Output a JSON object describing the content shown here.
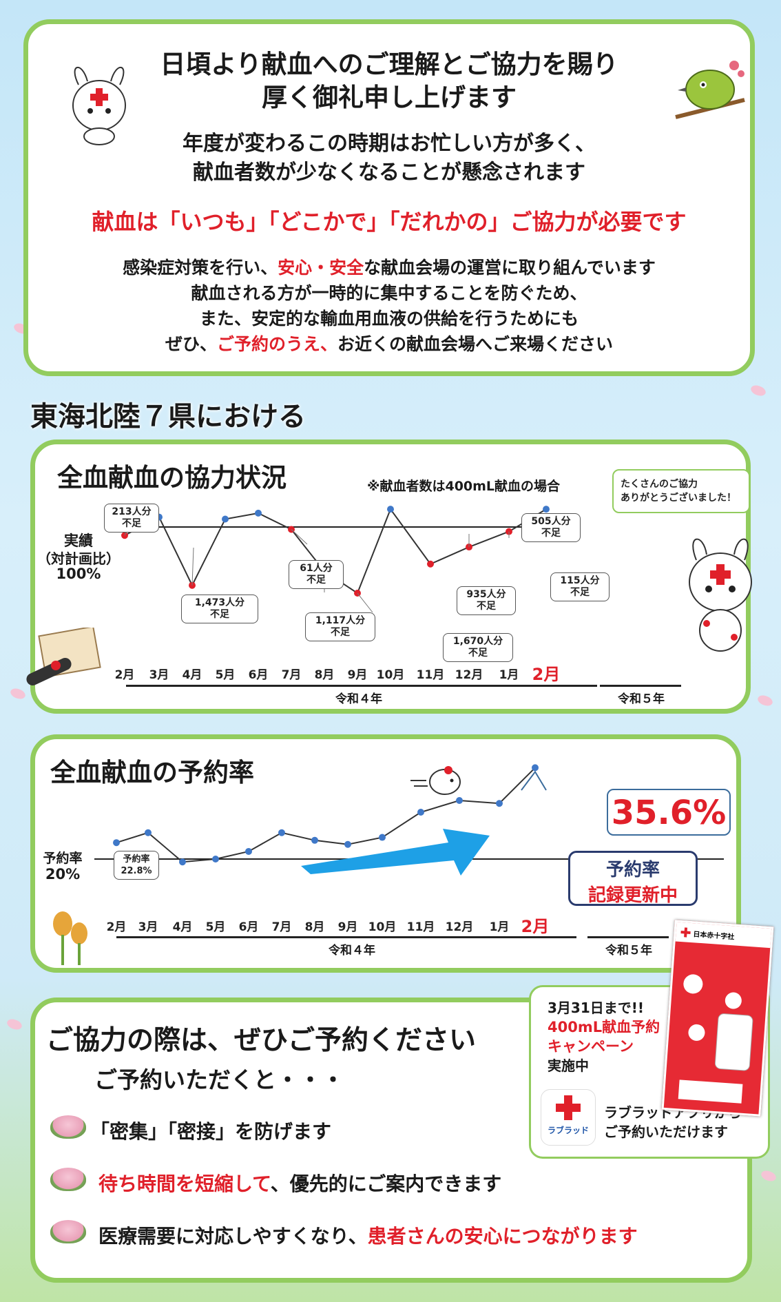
{
  "intro": {
    "title_line1": "日頃より献血へのご理解とご協力を賜り",
    "title_line2": "厚く御礼申し上げます",
    "sub_line1": "年度が変わるこの時期はお忙しい方が多く、",
    "sub_line2": "献血者数が少なくなることが懸念されます",
    "red_line": "献血は「いつも」「どこかで」「だれかの」ご協力が必要です",
    "p1_a": "感染症対策を行い、",
    "p1_red": "安心・安全",
    "p1_b": "な献血会場の運営に取り組んでいます",
    "p2": "献血される方が一時的に集中することを防ぐため、",
    "p3": "また、安定的な輸血用血液の供給を行うためにも",
    "p4_a": "ぜひ、",
    "p4_red": "ご予約のうえ、",
    "p4_b": "お近くの献血会場へご来場ください"
  },
  "region_heading": "東海北陸７県における",
  "whole_blood": {
    "title": "全血献血の協力状況",
    "note": "※献血者数は400mL献血の場合",
    "thanks_line1": "たくさんのご協力",
    "thanks_line2": "ありがとうございました！",
    "baseline_label_1": "実績",
    "baseline_label_2": "（対計画比）",
    "baseline_label_3": "100%",
    "bubbles": {
      "feb": "213人分\n不足",
      "apr": "1,473人分\n不足",
      "jul": "61人分\n不足",
      "aug": "1,117人分\n不足",
      "sep": "1,670人分\n不足",
      "nov": "935人分\n不足",
      "dec": "505人分\n不足",
      "jan": "115人分\n不足"
    },
    "era1": "令和４年",
    "era2": "令和５年"
  },
  "reservation": {
    "title": "全血献血の予約率",
    "baseline_label_1": "予約率",
    "baseline_label_2": "20%",
    "start_bubble": "予約率\n22.8%",
    "big_value": "35.6%",
    "record_1": "予約率",
    "record_2": "記録更新中",
    "era1": "令和４年",
    "era2": "令和５年"
  },
  "months": [
    "2月",
    "3月",
    "4月",
    "5月",
    "6月",
    "7月",
    "8月",
    "9月",
    "10月",
    "11月",
    "12月",
    "1月",
    "2月"
  ],
  "chart_data": [
    {
      "type": "line",
      "title": "全血献血の協力状況",
      "ylabel": "実績（対計画比）",
      "baseline": "100%",
      "x": [
        "2月",
        "3月",
        "4月",
        "5月",
        "6月",
        "7月",
        "8月",
        "9月",
        "10月",
        "11月",
        "12月",
        "1月",
        "2月"
      ],
      "series": [
        {
          "values": [
            -213,
            250,
            -1473,
            200,
            350,
            -61,
            -1117,
            -1670,
            450,
            -935,
            -505,
            -115,
            450
          ]
        }
      ],
      "deficit_labels": {
        "2月": "213人分不足",
        "4月": "1,473人分不足",
        "7月": "61人分不足",
        "8月": "1,117人分不足",
        "9月": "1,670人分不足",
        "11月": "935人分不足",
        "12月": "505人分不足",
        "1月": "115人分不足"
      }
    },
    {
      "type": "line",
      "title": "全血献血の予約率",
      "ylabel": "予約率",
      "baseline": "20%",
      "x": [
        "2月",
        "3月",
        "4月",
        "5月",
        "6月",
        "7月",
        "8月",
        "9月",
        "10月",
        "11月",
        "12月",
        "1月",
        "2月"
      ],
      "series": [
        {
          "values": [
            22.8,
            24.5,
            19.5,
            20.0,
            21.3,
            24.5,
            23.2,
            22.5,
            23.7,
            28.0,
            30.0,
            29.5,
            35.6
          ]
        }
      ]
    }
  ],
  "appeal": {
    "title": "ご協力の際は、ぜひご予約ください",
    "subtitle": "ご予約いただくと・・・",
    "b1": "「密集」「密接」を防げます",
    "b2_red": "待ち時間を短縮して",
    "b2": "、優先的にご案内できます",
    "b3": "医療需要に対応しやすくなり、",
    "b3_red": "患者さんの安心につながります"
  },
  "campaign": {
    "deadline": "3月31日まで!!",
    "name_1": "400mL献血予約",
    "name_2": "キャンペーン",
    "status": "実施中",
    "app_1": "ラブラッドアプリから",
    "app_2": "ご予約いただけます",
    "app_logo": "ラブラッド",
    "org": "日本赤十字社"
  },
  "colors": {
    "green_border": "#92cc5e",
    "red": "#e0202a",
    "navy": "#2a3b6e",
    "dot_blue": "#3f78c8",
    "dot_red": "#e0202a"
  }
}
